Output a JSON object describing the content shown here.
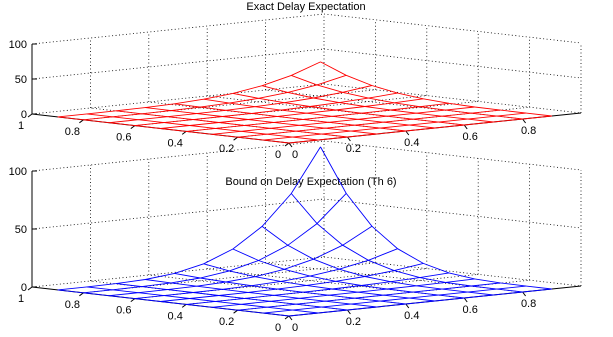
{
  "chart_data": [
    {
      "type": "surface",
      "title": "Exact Delay Expectation",
      "color": "#ff0000",
      "x": [
        0,
        0.1,
        0.2,
        0.3,
        0.4,
        0.5,
        0.6,
        0.7,
        0.8,
        0.9
      ],
      "y": [
        0,
        0.1,
        0.2,
        0.3,
        0.4,
        0.5,
        0.6,
        0.7,
        0.8,
        0.9
      ],
      "x_ticks": [
        "0",
        "0.2",
        "0.4",
        "0.6",
        "0.8"
      ],
      "y_ticks": [
        "0",
        "0.2",
        "0.4",
        "0.6",
        "0.8",
        "1"
      ],
      "z_ticks": [
        "0",
        "50",
        "100"
      ],
      "zlim": [
        0,
        100
      ],
      "grid": true,
      "peak": 40,
      "peak_at": [
        0.9,
        0.9
      ]
    },
    {
      "type": "surface",
      "title": "Bound on Delay Expectation (Th 6)",
      "color": "#0000ff",
      "x": [
        0,
        0.1,
        0.2,
        0.3,
        0.4,
        0.5,
        0.6,
        0.7,
        0.8,
        0.9
      ],
      "y": [
        0,
        0.1,
        0.2,
        0.3,
        0.4,
        0.5,
        0.6,
        0.7,
        0.8,
        0.9
      ],
      "x_ticks": [
        "0",
        "0.2",
        "0.4",
        "0.6",
        "0.8"
      ],
      "y_ticks": [
        "0",
        "0.2",
        "0.4",
        "0.6",
        "0.8",
        "1"
      ],
      "z_ticks": [
        "0",
        "50",
        "100"
      ],
      "zlim": [
        0,
        100
      ],
      "grid": true,
      "peak": 100,
      "peak_at": [
        0.9,
        0.9
      ]
    }
  ]
}
